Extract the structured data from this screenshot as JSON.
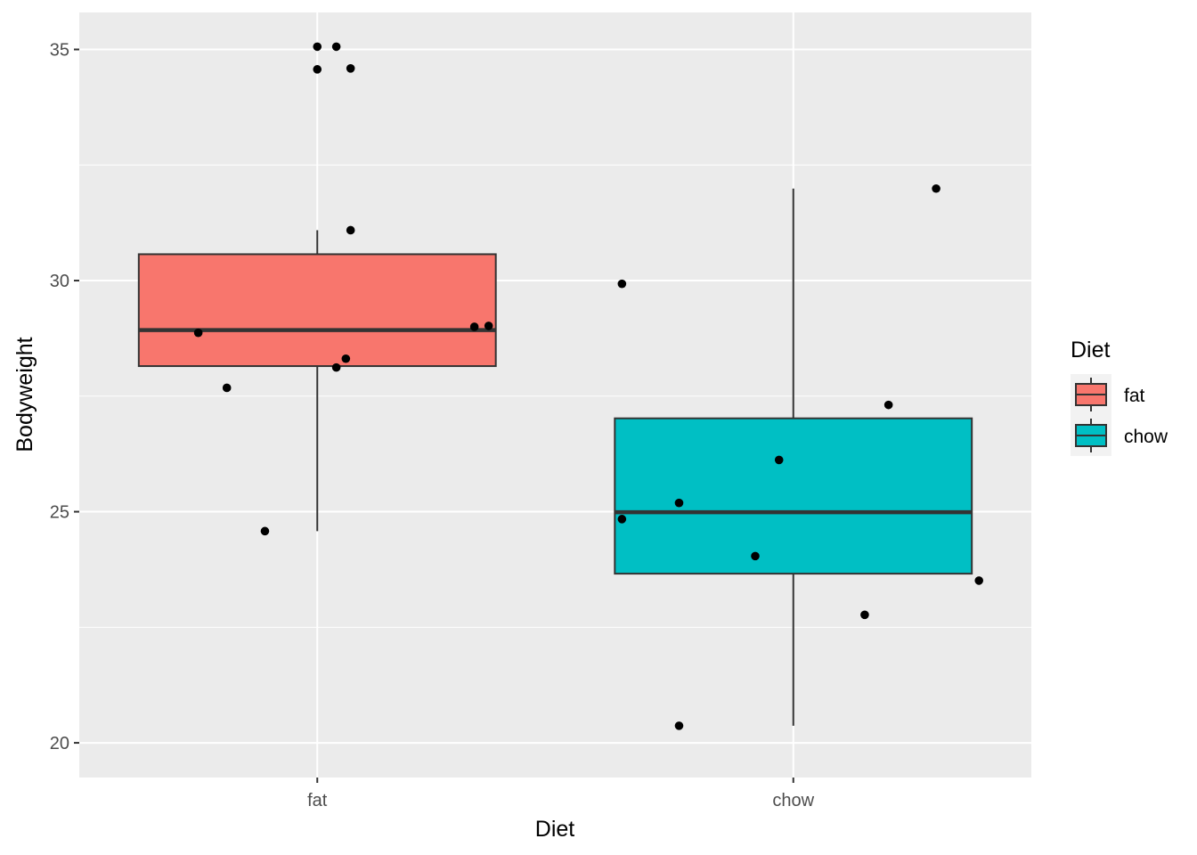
{
  "chart_data": {
    "type": "box",
    "xlabel": "Diet",
    "ylabel": "Bodyweight",
    "ylim": [
      19.25,
      35.8
    ],
    "yticks": [
      20,
      25,
      30,
      35
    ],
    "ytick_labels": [
      "20",
      "25",
      "30",
      "35"
    ],
    "categories": [
      "fat",
      "chow"
    ],
    "grid": true,
    "legend": {
      "title": "Diet",
      "position": "right",
      "entries": [
        {
          "label": "fat",
          "color": "#F8766D"
        },
        {
          "label": "chow",
          "color": "#00BFC4"
        }
      ]
    },
    "boxes": [
      {
        "category": "fat",
        "fill": "#F8766D",
        "q1": 28.15,
        "median": 28.93,
        "q3": 30.57,
        "whisker_low": 24.58,
        "whisker_high": 31.09
      },
      {
        "category": "chow",
        "fill": "#00BFC4",
        "q1": 23.66,
        "median": 24.99,
        "q3": 27.02,
        "whisker_low": 20.37,
        "whisker_high": 31.99
      }
    ],
    "points": [
      {
        "category": "fat",
        "jitter": 0.0,
        "y": 35.06
      },
      {
        "category": "fat",
        "jitter": 0.04,
        "y": 35.06
      },
      {
        "category": "fat",
        "jitter": 0.0,
        "y": 34.57
      },
      {
        "category": "fat",
        "jitter": 0.07,
        "y": 34.59
      },
      {
        "category": "fat",
        "jitter": 0.07,
        "y": 31.09
      },
      {
        "category": "fat",
        "jitter": -0.25,
        "y": 28.87
      },
      {
        "category": "fat",
        "jitter": -0.19,
        "y": 27.68
      },
      {
        "category": "fat",
        "jitter": -0.11,
        "y": 24.58
      },
      {
        "category": "fat",
        "jitter": 0.04,
        "y": 28.12
      },
      {
        "category": "fat",
        "jitter": 0.06,
        "y": 28.31
      },
      {
        "category": "fat",
        "jitter": 0.33,
        "y": 29.0
      },
      {
        "category": "fat",
        "jitter": 0.36,
        "y": 29.02
      },
      {
        "category": "chow",
        "jitter": -0.36,
        "y": 29.93
      },
      {
        "category": "chow",
        "jitter": -0.36,
        "y": 24.84
      },
      {
        "category": "chow",
        "jitter": -0.24,
        "y": 25.19
      },
      {
        "category": "chow",
        "jitter": -0.08,
        "y": 24.04
      },
      {
        "category": "chow",
        "jitter": -0.03,
        "y": 26.12
      },
      {
        "category": "chow",
        "jitter": 0.2,
        "y": 27.31
      },
      {
        "category": "chow",
        "jitter": 0.15,
        "y": 22.77
      },
      {
        "category": "chow",
        "jitter": -0.24,
        "y": 20.37
      },
      {
        "category": "chow",
        "jitter": 0.3,
        "y": 31.99
      },
      {
        "category": "chow",
        "jitter": 0.39,
        "y": 23.51
      }
    ]
  }
}
